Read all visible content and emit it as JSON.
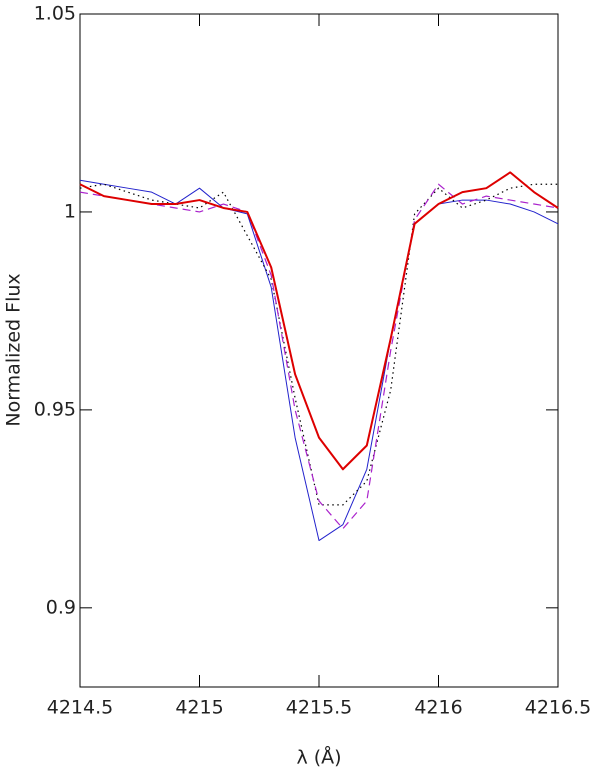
{
  "chart_data": {
    "type": "line",
    "xlabel": "λ (Å)",
    "ylabel": "Normalized Flux",
    "xlim": [
      4214.5,
      4216.5
    ],
    "xticks": [
      4214.5,
      4215,
      4215.5,
      4216,
      4216.5
    ],
    "ylim": [
      0.88,
      1.05
    ],
    "yticks": [
      0.9,
      0.95,
      1,
      1.05
    ],
    "x": [
      4214.5,
      4214.6,
      4214.7,
      4214.8,
      4214.9,
      4215.0,
      4215.1,
      4215.2,
      4215.3,
      4215.4,
      4215.5,
      4215.6,
      4215.7,
      4215.8,
      4215.9,
      4216.0,
      4216.1,
      4216.2,
      4216.3,
      4216.4,
      4216.5
    ],
    "series": [
      {
        "color": "#2222cc",
        "style": "solid",
        "width": 1,
        "values": [
          1.008,
          1.007,
          1.006,
          1.005,
          1.002,
          1.006,
          1.001,
          0.9995,
          0.981,
          0.943,
          0.917,
          0.921,
          0.935,
          0.968,
          0.997,
          1.002,
          1.003,
          1.003,
          1.002,
          1.0,
          0.997
        ]
      },
      {
        "color": "#000000",
        "style": "dotted",
        "width": 1.2,
        "values": [
          1.006,
          1.007,
          1.005,
          1.003,
          1.002,
          1.001,
          1.005,
          0.994,
          0.983,
          0.953,
          0.926,
          0.926,
          0.932,
          0.955,
          0.9995,
          1.006,
          1.001,
          1.003,
          1.006,
          1.007,
          1.007
        ]
      },
      {
        "color": "#aa22cc",
        "style": "dashed",
        "width": 1.2,
        "values": [
          1.005,
          1.004,
          1.003,
          1.002,
          1.001,
          1.0,
          1.002,
          1.0,
          0.984,
          0.95,
          0.927,
          0.92,
          0.927,
          0.965,
          0.998,
          1.007,
          1.002,
          1.004,
          1.003,
          1.002,
          1.001
        ]
      },
      {
        "color": "#dd0000",
        "style": "solid",
        "width": 2,
        "values": [
          1.007,
          1.004,
          1.003,
          1.002,
          1.002,
          1.003,
          1.001,
          1.0,
          0.986,
          0.959,
          0.943,
          0.935,
          0.941,
          0.968,
          0.997,
          1.002,
          1.005,
          1.006,
          1.01,
          1.005,
          1.001
        ]
      }
    ]
  }
}
